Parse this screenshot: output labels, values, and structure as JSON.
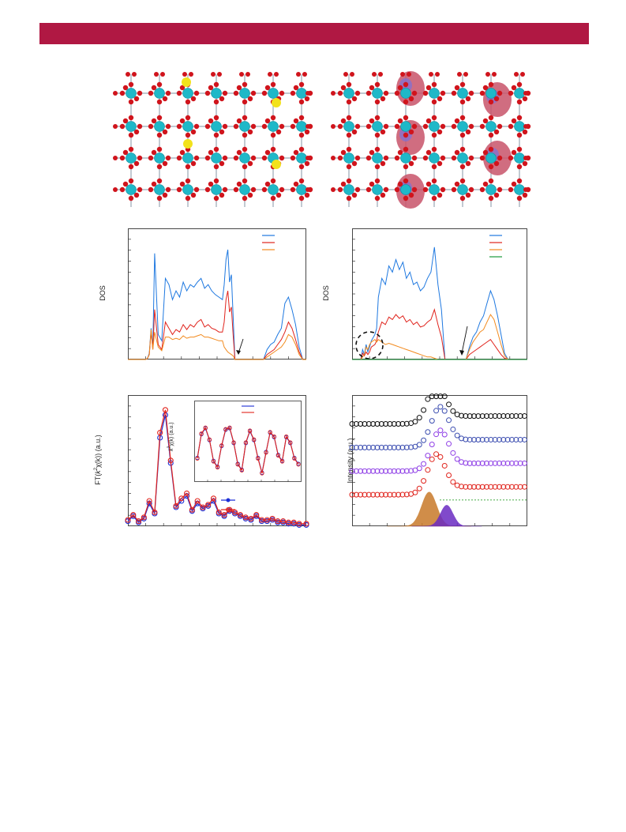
{
  "colors": {
    "header": "#b01843",
    "oxygen": "#d0141c",
    "metal": "#1fb8c8",
    "dopant": "#f2e21c",
    "isosurface": "#c8546a",
    "blue": "#1e78e0",
    "red": "#e0231c",
    "orange": "#f28a1e",
    "green": "#1a9a3a",
    "exafs_blue": "#1c2fd6",
    "exafs_red": "#e2231c",
    "black": "#111111",
    "navy": "#3b4db0",
    "violet": "#8e3ee6",
    "fill_orange": "#c87a2a",
    "fill_purple": "#6a2bc2",
    "dotted_green": "#2ea02e"
  },
  "figure": {
    "dos_ylabel": "DOS",
    "ft_ylabel_prefix": "FT(",
    "ft_ylabel_k": "k",
    "ft_ylabel_sup": "2",
    "ft_ylabel_rest": "χ(k)) (a.u.)",
    "inset_ylabel_k": "k",
    "inset_ylabel_sup": "2",
    "inset_ylabel_rest": "χ(k) (a.u.)",
    "xps_ylabel": "Intensity (a.u.)"
  },
  "chart_data": [
    {
      "type": "line",
      "panel": "dos-left",
      "ylabel": "DOS",
      "xlim": [
        0,
        100
      ],
      "ylim": [
        0,
        100
      ],
      "annotations": [
        "arrow"
      ],
      "series": [
        {
          "color": "blue",
          "x": [
            0,
            10,
            11,
            12,
            13,
            14,
            15,
            17,
            19,
            21,
            23,
            25,
            27,
            29,
            31,
            33,
            35,
            37,
            39,
            41,
            43,
            45,
            47,
            49,
            51,
            53,
            54,
            55,
            56,
            57,
            58,
            59,
            60,
            62,
            64,
            66,
            68,
            70,
            72,
            74,
            76,
            78,
            80,
            82,
            84,
            86,
            88,
            90,
            92,
            94,
            96,
            98,
            100
          ],
          "y": [
            0,
            0,
            1,
            5,
            25,
            10,
            85,
            20,
            15,
            65,
            60,
            48,
            55,
            50,
            62,
            55,
            60,
            58,
            62,
            65,
            57,
            60,
            55,
            52,
            50,
            48,
            60,
            80,
            88,
            62,
            68,
            35,
            0,
            0,
            0,
            0,
            0,
            0,
            0,
            0,
            0,
            8,
            12,
            14,
            20,
            25,
            45,
            50,
            40,
            28,
            10,
            0,
            0
          ]
        },
        {
          "color": "red",
          "x": [
            0,
            10,
            11,
            12,
            13,
            14,
            15,
            17,
            19,
            21,
            23,
            25,
            27,
            29,
            31,
            33,
            35,
            37,
            39,
            41,
            43,
            45,
            47,
            49,
            51,
            53,
            54,
            55,
            56,
            57,
            58,
            59,
            60,
            62,
            64,
            66,
            68,
            70,
            72,
            74,
            76,
            78,
            80,
            82,
            84,
            86,
            88,
            90,
            92,
            94,
            96,
            98,
            100
          ],
          "y": [
            0,
            0,
            1,
            4,
            22,
            8,
            40,
            12,
            8,
            30,
            25,
            20,
            24,
            22,
            28,
            24,
            28,
            26,
            30,
            32,
            26,
            28,
            25,
            24,
            22,
            22,
            30,
            48,
            55,
            38,
            42,
            20,
            0,
            0,
            0,
            0,
            0,
            0,
            0,
            0,
            0,
            4,
            6,
            8,
            12,
            16,
            22,
            30,
            25,
            16,
            6,
            0,
            0
          ]
        },
        {
          "color": "orange",
          "x": [
            0,
            10,
            11,
            12,
            13,
            14,
            15,
            17,
            19,
            21,
            23,
            25,
            27,
            29,
            31,
            33,
            35,
            37,
            39,
            41,
            43,
            45,
            47,
            49,
            51,
            53,
            54,
            55,
            56,
            57,
            58,
            59,
            60,
            62,
            64,
            66,
            68,
            70,
            72,
            74,
            76,
            78,
            80,
            82,
            84,
            86,
            88,
            90,
            92,
            94,
            96,
            98,
            100
          ],
          "y": [
            0,
            0,
            1,
            4,
            24,
            8,
            22,
            10,
            7,
            18,
            18,
            16,
            17,
            16,
            19,
            17,
            18,
            18,
            19,
            20,
            18,
            18,
            17,
            16,
            15,
            15,
            10,
            8,
            6,
            5,
            4,
            3,
            0,
            0,
            0,
            0,
            0,
            0,
            0,
            0,
            0,
            2,
            4,
            6,
            8,
            10,
            14,
            20,
            18,
            12,
            4,
            0,
            0
          ]
        }
      ]
    },
    {
      "type": "line",
      "panel": "dos-right",
      "ylabel": "DOS",
      "xlim": [
        0,
        100
      ],
      "ylim": [
        0,
        100
      ],
      "annotations": [
        "arrow",
        "dashed circle"
      ],
      "series": [
        {
          "color": "blue",
          "x": [
            0,
            5,
            6,
            7,
            8,
            9,
            10,
            11,
            13,
            14,
            15,
            17,
            19,
            21,
            23,
            25,
            27,
            29,
            31,
            33,
            35,
            37,
            39,
            41,
            43,
            45,
            47,
            49,
            51,
            53,
            55,
            57,
            59,
            61,
            63,
            65,
            67,
            69,
            71,
            73,
            75,
            77,
            79,
            81,
            83,
            85,
            87,
            89,
            91,
            93,
            95,
            100
          ],
          "y": [
            0,
            0,
            8,
            4,
            12,
            6,
            10,
            15,
            20,
            25,
            50,
            65,
            60,
            75,
            70,
            80,
            72,
            78,
            65,
            70,
            60,
            62,
            55,
            58,
            65,
            70,
            90,
            60,
            40,
            0,
            0,
            0,
            0,
            0,
            0,
            0,
            10,
            18,
            22,
            30,
            35,
            45,
            55,
            48,
            35,
            20,
            5,
            0,
            0,
            0,
            0,
            0
          ]
        },
        {
          "color": "red",
          "x": [
            0,
            5,
            6,
            7,
            8,
            9,
            10,
            11,
            13,
            14,
            15,
            17,
            19,
            21,
            23,
            25,
            27,
            29,
            31,
            33,
            35,
            37,
            39,
            41,
            43,
            45,
            47,
            49,
            51,
            53,
            55,
            57,
            59,
            61,
            63,
            65,
            67,
            69,
            71,
            73,
            75,
            77,
            79,
            81,
            83,
            85,
            87,
            89,
            91,
            93,
            95,
            100
          ],
          "y": [
            0,
            0,
            5,
            3,
            6,
            4,
            6,
            10,
            12,
            15,
            22,
            30,
            28,
            34,
            32,
            36,
            33,
            35,
            30,
            32,
            28,
            30,
            26,
            27,
            30,
            32,
            40,
            28,
            18,
            0,
            0,
            0,
            0,
            0,
            0,
            0,
            4,
            6,
            8,
            10,
            12,
            14,
            16,
            12,
            8,
            4,
            1,
            0,
            0,
            0,
            0,
            0
          ]
        },
        {
          "color": "orange",
          "x": [
            0,
            5,
            6,
            7,
            8,
            9,
            10,
            11,
            13,
            14,
            15,
            17,
            19,
            21,
            23,
            25,
            27,
            29,
            31,
            33,
            35,
            37,
            39,
            41,
            43,
            45,
            47,
            49,
            51,
            53,
            55,
            57,
            59,
            61,
            63,
            65,
            67,
            69,
            71,
            73,
            75,
            77,
            79,
            81,
            83,
            85,
            87,
            89,
            91,
            93,
            95,
            100
          ],
          "y": [
            0,
            0,
            2,
            4,
            10,
            8,
            12,
            14,
            16,
            14,
            16,
            14,
            12,
            13,
            12,
            11,
            10,
            9,
            8,
            7,
            6,
            5,
            4,
            3,
            2,
            2,
            1,
            0,
            0,
            0,
            0,
            0,
            0,
            0,
            0,
            0,
            8,
            14,
            18,
            22,
            24,
            30,
            36,
            32,
            22,
            12,
            3,
            0,
            0,
            0,
            0,
            0
          ]
        },
        {
          "color": "green",
          "x": [
            0,
            5,
            8,
            100
          ],
          "y": [
            0,
            0,
            0,
            0
          ]
        }
      ]
    },
    {
      "type": "line",
      "panel": "exafs-ft",
      "ylabel": "FT(k2χ(k)) (a.u.)",
      "xlim": [
        0,
        100
      ],
      "ylim": [
        0,
        100
      ],
      "series": [
        {
          "color": "exafs_blue",
          "x": [
            0,
            3,
            6,
            9,
            12,
            15,
            18,
            21,
            24,
            27,
            30,
            33,
            36,
            39,
            42,
            45,
            48,
            51,
            54,
            57,
            60,
            63,
            66,
            69,
            72,
            75,
            78,
            81,
            84,
            87,
            90,
            93,
            96,
            100
          ],
          "y": [
            4,
            8,
            3,
            6,
            18,
            10,
            70,
            88,
            50,
            15,
            20,
            24,
            12,
            18,
            14,
            16,
            20,
            10,
            8,
            12,
            10,
            8,
            6,
            5,
            8,
            4,
            4,
            5,
            3,
            3,
            2,
            2,
            1,
            1
          ]
        },
        {
          "color": "exafs_red",
          "x": [
            0,
            3,
            6,
            9,
            12,
            15,
            18,
            21,
            24,
            27,
            30,
            33,
            36,
            39,
            42,
            45,
            48,
            51,
            54,
            57,
            60,
            63,
            66,
            69,
            72,
            75,
            78,
            81,
            84,
            87,
            90,
            93,
            96,
            100
          ],
          "y": [
            5,
            9,
            4,
            7,
            20,
            11,
            74,
            92,
            52,
            16,
            22,
            26,
            13,
            20,
            15,
            17,
            22,
            11,
            9,
            13,
            11,
            9,
            7,
            6,
            9,
            5,
            5,
            6,
            4,
            4,
            3,
            3,
            2,
            2
          ]
        }
      ]
    },
    {
      "type": "line",
      "panel": "exafs-inset",
      "ylabel": "k2χ(k) (a.u.)",
      "xlim": [
        0,
        100
      ],
      "ylim": [
        -100,
        100
      ],
      "series": [
        {
          "color": "exafs_blue",
          "x": [
            0,
            4,
            8,
            12,
            16,
            20,
            24,
            28,
            32,
            36,
            40,
            44,
            48,
            52,
            56,
            60,
            64,
            68,
            72,
            76,
            80,
            84,
            88,
            92,
            96,
            100
          ],
          "y": [
            -40,
            40,
            60,
            20,
            -50,
            -70,
            0,
            55,
            60,
            10,
            -60,
            -80,
            10,
            50,
            20,
            -40,
            -90,
            -20,
            45,
            30,
            -30,
            -50,
            30,
            10,
            -40,
            -60
          ]
        },
        {
          "color": "exafs_red",
          "x": [
            0,
            4,
            8,
            12,
            16,
            20,
            24,
            28,
            32,
            36,
            40,
            44,
            48,
            52,
            56,
            60,
            64,
            68,
            72,
            76,
            80,
            84,
            88,
            92,
            96,
            100
          ],
          "y": [
            -42,
            42,
            62,
            22,
            -52,
            -72,
            2,
            57,
            62,
            12,
            -62,
            -82,
            12,
            52,
            22,
            -42,
            -92,
            -22,
            47,
            32,
            -32,
            -52,
            32,
            12,
            -42,
            -62
          ]
        }
      ]
    },
    {
      "type": "scatter",
      "panel": "xps",
      "ylabel": "Intensity (a.u.)",
      "xlim": [
        0,
        100
      ],
      "ylim": [
        0,
        100
      ],
      "series": [
        {
          "color": "black",
          "offset": 78,
          "peak_x": 48,
          "peak_h": 28
        },
        {
          "color": "navy",
          "offset": 60,
          "peak_x": 50,
          "peak_h": 28
        },
        {
          "color": "violet",
          "offset": 42,
          "peak_x": 50,
          "peak_h": 28
        },
        {
          "color": "red",
          "offset": 24,
          "peak_x": 48,
          "peak_h": 28
        }
      ],
      "components": [
        {
          "color": "fill_orange",
          "peak_x": 44,
          "height": 26,
          "width": 6
        },
        {
          "color": "fill_purple",
          "peak_x": 54,
          "height": 16,
          "width": 5
        }
      ],
      "baseline": {
        "color": "dotted_green",
        "level": 20
      }
    }
  ]
}
